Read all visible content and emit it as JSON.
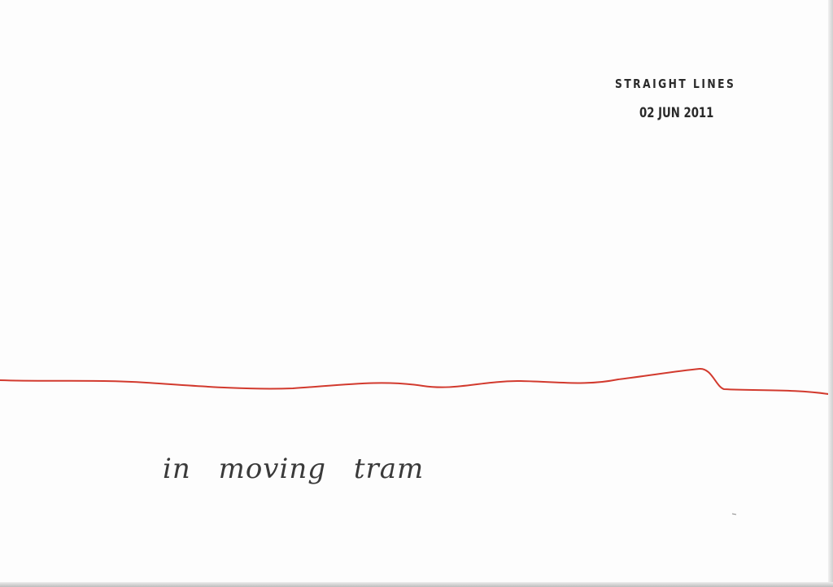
{
  "stamp": {
    "title": "STRAIGHT LINES",
    "date": "02 JUN 2011"
  },
  "caption": {
    "text": "in moving tram"
  },
  "colors": {
    "paper": "#fdfdfd",
    "ink_red": "#d23a2e",
    "stamp_ink": "#2a2a2a",
    "pencil": "#3a3a3a"
  }
}
